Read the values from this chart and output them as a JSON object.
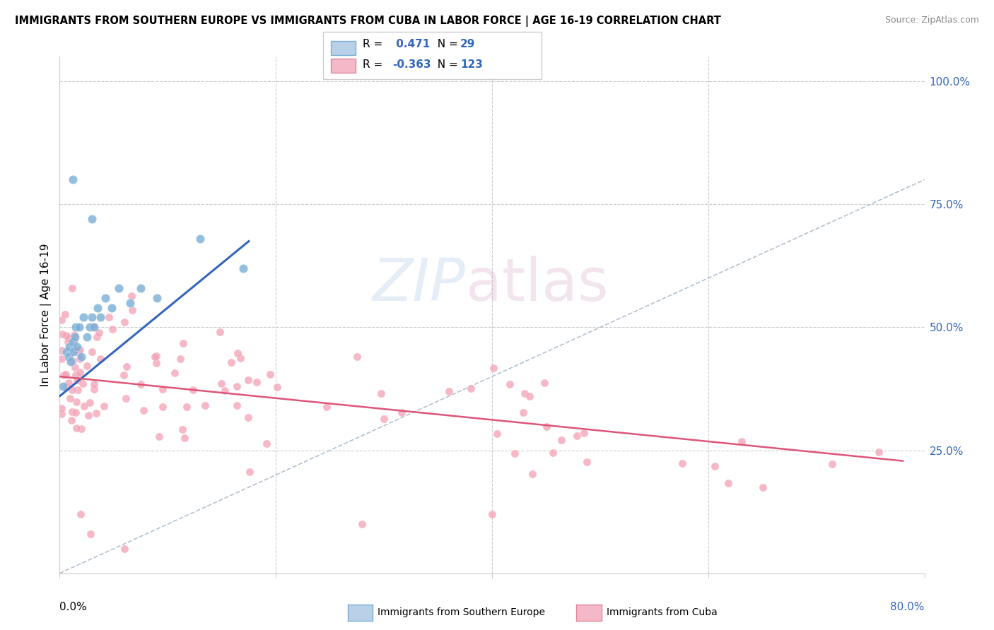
{
  "title": "IMMIGRANTS FROM SOUTHERN EUROPE VS IMMIGRANTS FROM CUBA IN LABOR FORCE | AGE 16-19 CORRELATION CHART",
  "source": "Source: ZipAtlas.com",
  "ylabel": "In Labor Force | Age 16-19",
  "right_yticks": [
    "100.0%",
    "75.0%",
    "50.0%",
    "25.0%"
  ],
  "right_ytick_vals": [
    1.0,
    0.75,
    0.5,
    0.25
  ],
  "xlim": [
    0.0,
    0.8
  ],
  "ylim": [
    0.0,
    1.05
  ],
  "blue_R": 0.471,
  "blue_N": 29,
  "pink_R": -0.363,
  "pink_N": 123,
  "blue_scatter_color": "#7aaed6",
  "pink_scatter_color": "#f4a0b5",
  "blue_line_color": "#3366bb",
  "pink_line_color": "#dd5577",
  "diagonal_color": "#aabbcc",
  "legend_box_blue_face": "#b8d0e8",
  "legend_box_blue_edge": "#7aaed6",
  "legend_box_pink_face": "#f4b8c8",
  "legend_box_pink_edge": "#dd8899",
  "legend_R_N_color": "#3366bb",
  "watermark_ZIP_color": "#99bbdd",
  "watermark_atlas_color": "#cc99bb",
  "grid_color": "#cccccc",
  "bottom_legend_label_blue": "Immigrants from Southern Europe",
  "bottom_legend_label_pink": "Immigrants from Cuba"
}
